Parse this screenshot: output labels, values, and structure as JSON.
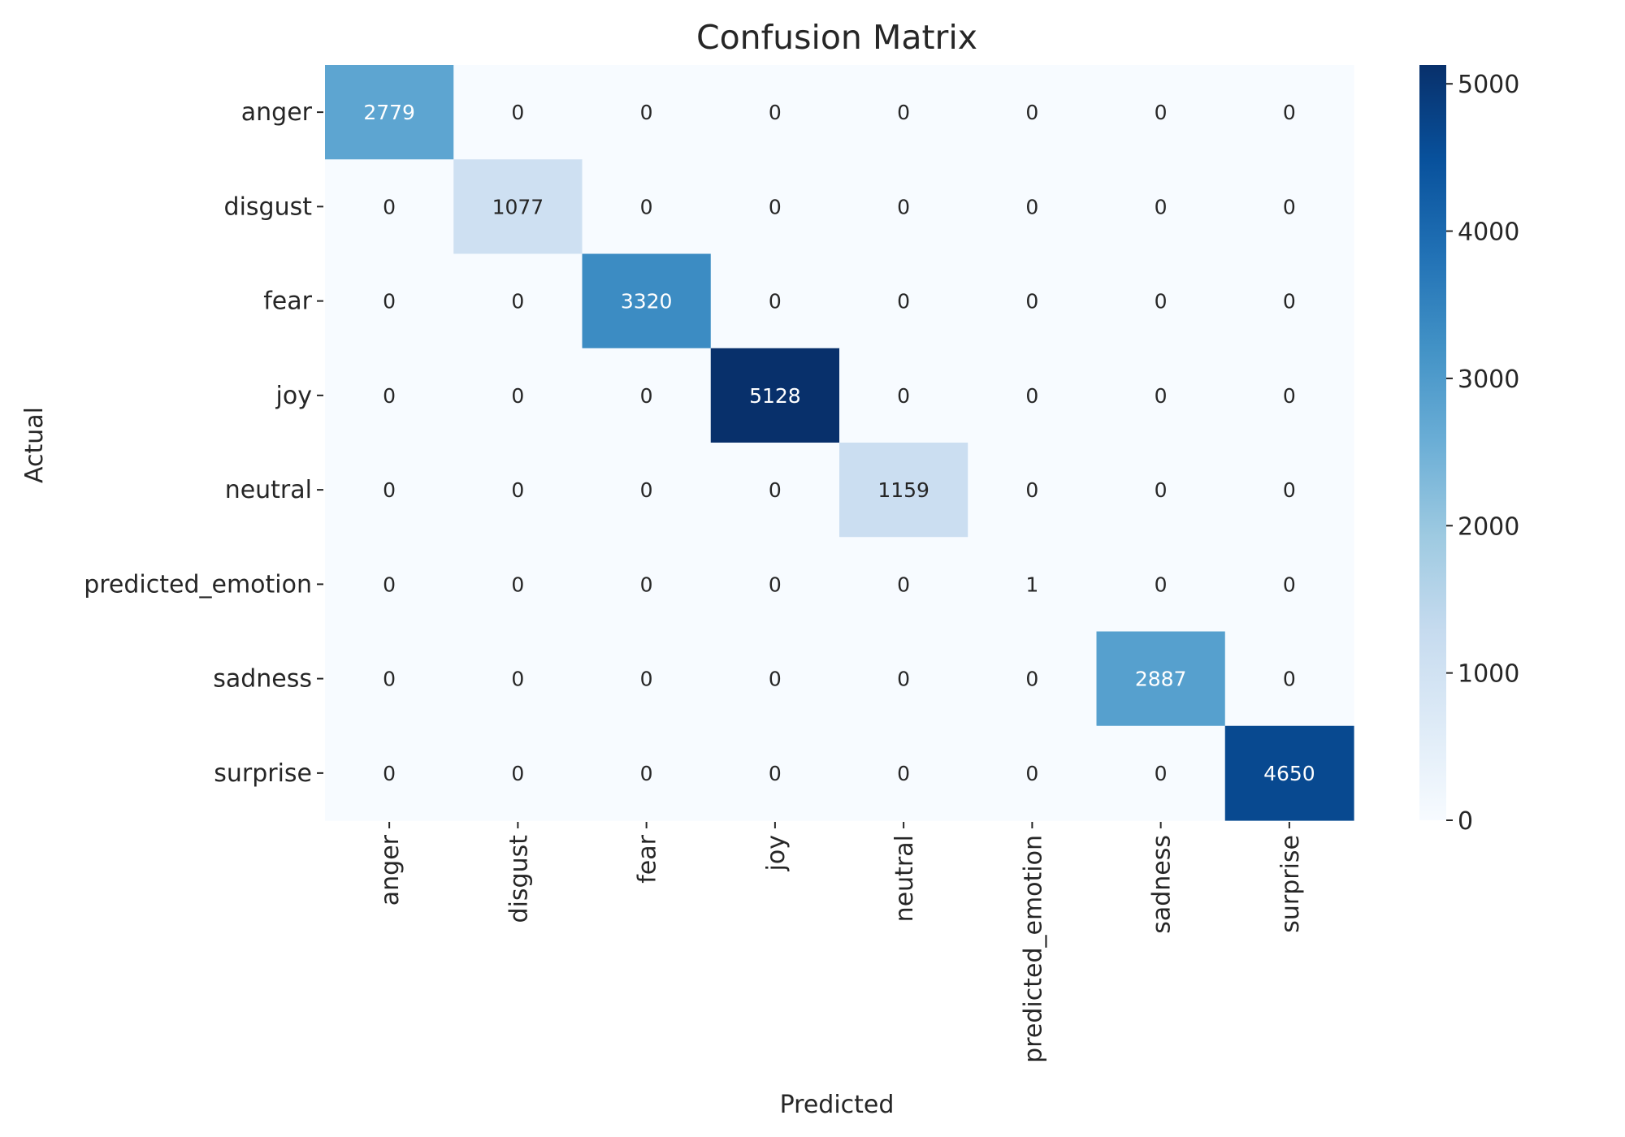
{
  "chart_data": {
    "type": "heatmap",
    "title": "Confusion Matrix",
    "xlabel": "Predicted",
    "ylabel": "Actual",
    "x_categories": [
      "anger",
      "disgust",
      "fear",
      "joy",
      "neutral",
      "predicted_emotion",
      "sadness",
      "surprise"
    ],
    "y_categories": [
      "anger",
      "disgust",
      "fear",
      "joy",
      "neutral",
      "predicted_emotion",
      "sadness",
      "surprise"
    ],
    "values": [
      [
        2779,
        0,
        0,
        0,
        0,
        0,
        0,
        0
      ],
      [
        0,
        1077,
        0,
        0,
        0,
        0,
        0,
        0
      ],
      [
        0,
        0,
        3320,
        0,
        0,
        0,
        0,
        0
      ],
      [
        0,
        0,
        0,
        5128,
        0,
        0,
        0,
        0
      ],
      [
        0,
        0,
        0,
        0,
        1159,
        0,
        0,
        0
      ],
      [
        0,
        0,
        0,
        0,
        0,
        1,
        0,
        0
      ],
      [
        0,
        0,
        0,
        0,
        0,
        0,
        2887,
        0
      ],
      [
        0,
        0,
        0,
        0,
        0,
        0,
        0,
        4650
      ]
    ],
    "colormap": "Blues",
    "color_range": [
      0,
      5128
    ],
    "colorbar_ticks": [
      0,
      1000,
      2000,
      3000,
      4000,
      5000
    ],
    "grid": false,
    "colorbar_position": "right"
  },
  "colors": {
    "text": "#262626",
    "cmap_stops": [
      "#f7fbff",
      "#deebf7",
      "#c6dbef",
      "#9ecae1",
      "#6baed6",
      "#4292c6",
      "#2171b5",
      "#08519c",
      "#08306b"
    ]
  }
}
